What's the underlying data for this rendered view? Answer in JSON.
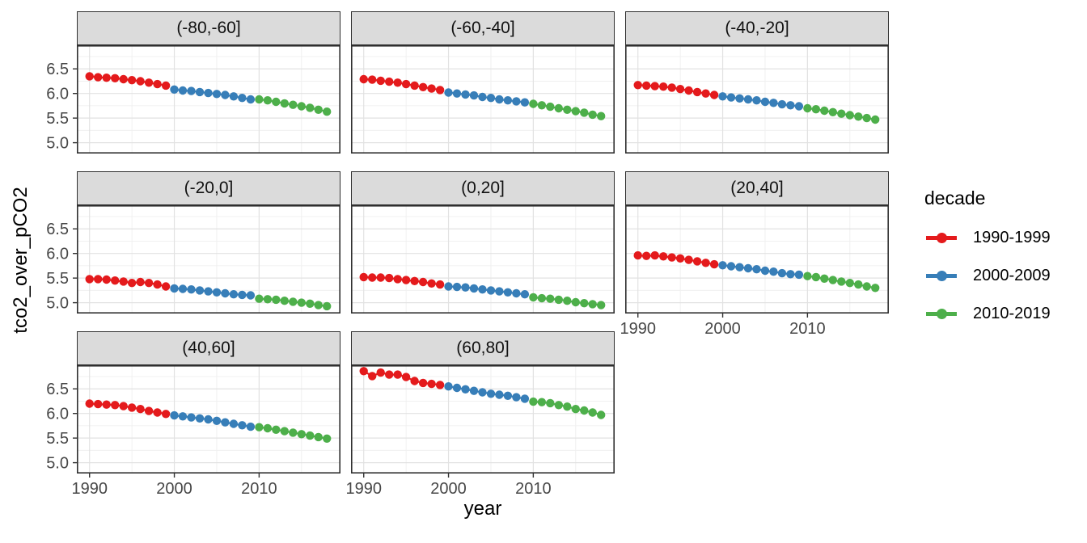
{
  "figure": {
    "x_axis_title": "year",
    "y_axis_title": "tco2_over_pCO2",
    "background": "#ffffff"
  },
  "legend": {
    "title": "decade",
    "entries": [
      {
        "label": "1990-1999",
        "color": "#e41a1c"
      },
      {
        "label": "2000-2009",
        "color": "#377eb8"
      },
      {
        "label": "2010-2019",
        "color": "#4daf4a"
      }
    ]
  },
  "style_colors": {
    "strip_background": "#dbdbdb",
    "panel_border": "#2f2f2f",
    "grid_major": "#e2e2e2",
    "grid_minor": "#f0f0f0",
    "tick_mark": "#333333",
    "tick_label": "#474747"
  },
  "chart_data": {
    "type": "scatter",
    "title": "",
    "xlabel": "year",
    "ylabel": "tco2_over_pCO2",
    "facet_variable_values": [
      "(-80,-60]",
      "(-60,-40]",
      "(-40,-20]",
      "(-20,0]",
      "(0,20]",
      "(20,40]",
      "(40,60]",
      "(60,80]"
    ],
    "grid": true,
    "legend_position": "right",
    "x_range": [
      1988.5,
      2019.6
    ],
    "y_range": [
      4.78,
      6.98
    ],
    "x_ticks": [
      1990,
      2000,
      2010
    ],
    "x_tick_labels": [
      "1990",
      "2000",
      "2010"
    ],
    "y_ticks": [
      6.5,
      6.0,
      5.5,
      5.0
    ],
    "y_tick_labels": [
      "6.5",
      "6.0",
      "5.5",
      "5.0"
    ],
    "x_minor_ticks": [
      1995,
      2005,
      2015
    ],
    "y_minor_ticks": [
      6.75,
      6.25,
      5.75,
      5.25
    ],
    "years": [
      1990,
      1991,
      1992,
      1993,
      1994,
      1995,
      1996,
      1997,
      1998,
      1999,
      2000,
      2001,
      2002,
      2003,
      2004,
      2005,
      2006,
      2007,
      2008,
      2009,
      2010,
      2011,
      2012,
      2013,
      2014,
      2015,
      2016,
      2017,
      2018
    ],
    "decade_groups": [
      {
        "name": "1990-1999",
        "start_index": 0,
        "end_index": 9
      },
      {
        "name": "2000-2009",
        "start_index": 10,
        "end_index": 19
      },
      {
        "name": "2010-2019",
        "start_index": 20,
        "end_index": 28
      }
    ],
    "facets": [
      {
        "label": "(-80,-60]",
        "values": [
          6.35,
          6.33,
          6.32,
          6.31,
          6.29,
          6.27,
          6.25,
          6.22,
          6.19,
          6.16,
          6.08,
          6.06,
          6.05,
          6.03,
          6.01,
          5.99,
          5.97,
          5.94,
          5.91,
          5.88,
          5.88,
          5.86,
          5.83,
          5.8,
          5.77,
          5.74,
          5.71,
          5.67,
          5.63
        ]
      },
      {
        "label": "(-60,-40]",
        "values": [
          6.29,
          6.28,
          6.26,
          6.24,
          6.22,
          6.19,
          6.16,
          6.13,
          6.1,
          6.07,
          6.02,
          6.0,
          5.98,
          5.96,
          5.93,
          5.91,
          5.88,
          5.86,
          5.84,
          5.82,
          5.79,
          5.76,
          5.73,
          5.7,
          5.67,
          5.64,
          5.61,
          5.57,
          5.54
        ]
      },
      {
        "label": "(-40,-20]",
        "values": [
          6.17,
          6.16,
          6.15,
          6.14,
          6.12,
          6.09,
          6.06,
          6.03,
          6.0,
          5.97,
          5.94,
          5.92,
          5.9,
          5.88,
          5.86,
          5.83,
          5.81,
          5.78,
          5.76,
          5.74,
          5.7,
          5.68,
          5.65,
          5.62,
          5.59,
          5.56,
          5.53,
          5.5,
          5.47
        ]
      },
      {
        "label": "(-20,0]",
        "values": [
          5.48,
          5.48,
          5.47,
          5.45,
          5.43,
          5.4,
          5.42,
          5.4,
          5.37,
          5.33,
          5.29,
          5.28,
          5.27,
          5.25,
          5.23,
          5.21,
          5.19,
          5.17,
          5.16,
          5.15,
          5.08,
          5.07,
          5.06,
          5.04,
          5.02,
          5.0,
          4.98,
          4.95,
          4.93
        ]
      },
      {
        "label": "(0,20]",
        "values": [
          5.52,
          5.51,
          5.51,
          5.5,
          5.48,
          5.46,
          5.44,
          5.42,
          5.39,
          5.37,
          5.33,
          5.32,
          5.31,
          5.29,
          5.27,
          5.25,
          5.23,
          5.21,
          5.19,
          5.17,
          5.11,
          5.09,
          5.08,
          5.06,
          5.04,
          5.01,
          4.99,
          4.97,
          4.95
        ]
      },
      {
        "label": "(20,40]",
        "values": [
          5.96,
          5.95,
          5.96,
          5.94,
          5.92,
          5.9,
          5.87,
          5.84,
          5.81,
          5.78,
          5.76,
          5.74,
          5.72,
          5.7,
          5.68,
          5.65,
          5.63,
          5.6,
          5.58,
          5.57,
          5.54,
          5.52,
          5.49,
          5.46,
          5.43,
          5.4,
          5.37,
          5.33,
          5.3
        ]
      },
      {
        "label": "(40,60]",
        "values": [
          6.2,
          6.19,
          6.18,
          6.17,
          6.15,
          6.12,
          6.09,
          6.05,
          6.02,
          5.99,
          5.96,
          5.94,
          5.92,
          5.9,
          5.88,
          5.85,
          5.82,
          5.79,
          5.76,
          5.73,
          5.72,
          5.7,
          5.67,
          5.64,
          5.61,
          5.58,
          5.55,
          5.52,
          5.49
        ]
      },
      {
        "label": "(60,80]",
        "values": [
          6.86,
          6.76,
          6.83,
          6.79,
          6.79,
          6.74,
          6.66,
          6.62,
          6.6,
          6.58,
          6.55,
          6.52,
          6.49,
          6.46,
          6.43,
          6.4,
          6.38,
          6.36,
          6.33,
          6.3,
          6.24,
          6.23,
          6.21,
          6.17,
          6.14,
          6.09,
          6.06,
          6.02,
          5.97
        ]
      }
    ]
  }
}
